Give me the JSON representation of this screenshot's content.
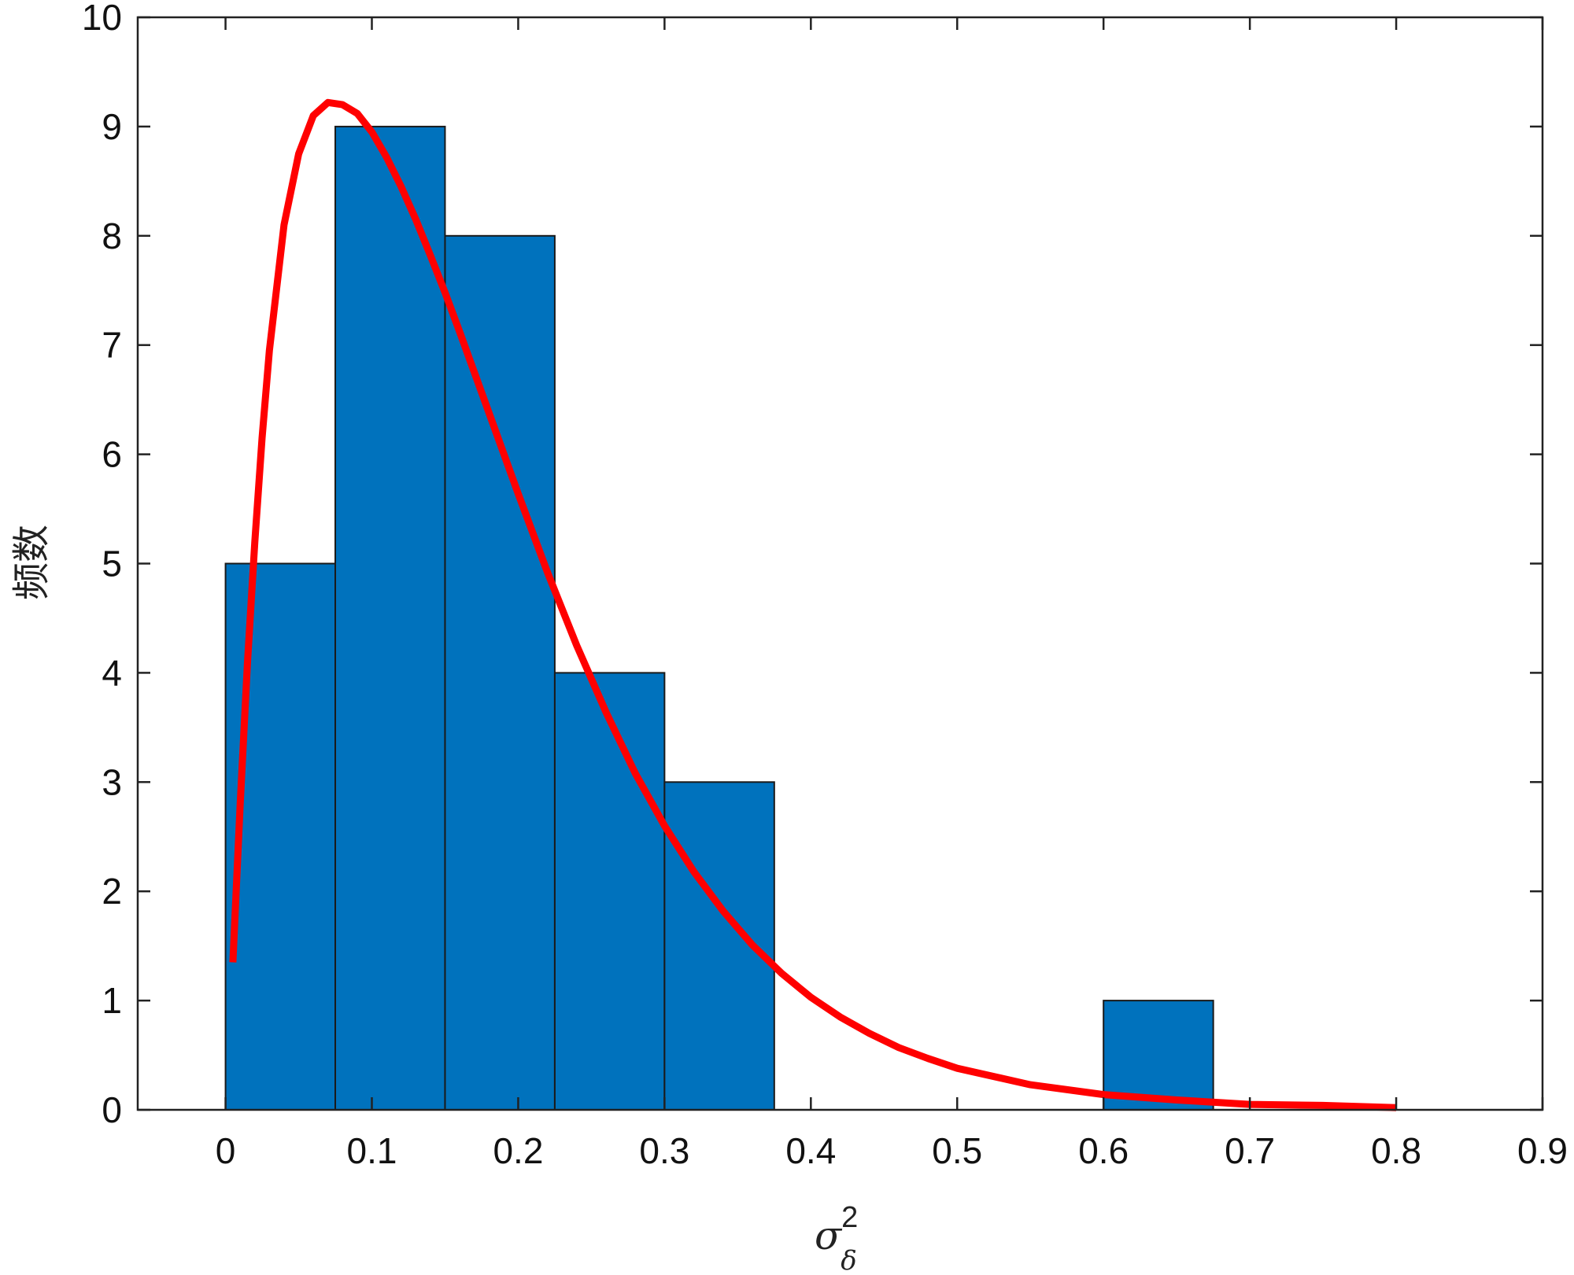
{
  "chart_data": {
    "type": "bar",
    "xlabel": "σ",
    "xlabel_super": "2",
    "xlabel_sub": "δ",
    "ylabel": "频数",
    "xlim": [
      -0.06,
      0.9
    ],
    "ylim": [
      0,
      10
    ],
    "xticks": [
      0,
      0.1,
      0.2,
      0.3,
      0.4,
      0.5,
      0.6,
      0.7,
      0.8,
      0.9
    ],
    "xtick_labels": [
      "0",
      "0.1",
      "0.2",
      "0.3",
      "0.4",
      "0.5",
      "0.6",
      "0.7",
      "0.8",
      "0.9"
    ],
    "yticks": [
      0,
      1,
      2,
      3,
      4,
      5,
      6,
      7,
      8,
      9,
      10
    ],
    "ytick_labels": [
      "0",
      "1",
      "2",
      "3",
      "4",
      "5",
      "6",
      "7",
      "8",
      "9",
      "10"
    ],
    "bin_width": 0.075,
    "bins": [
      {
        "start": 0.0,
        "count": 5
      },
      {
        "start": 0.075,
        "count": 9
      },
      {
        "start": 0.15,
        "count": 8
      },
      {
        "start": 0.225,
        "count": 4
      },
      {
        "start": 0.3,
        "count": 3
      },
      {
        "start": 0.375,
        "count": 0
      },
      {
        "start": 0.45,
        "count": 0
      },
      {
        "start": 0.525,
        "count": 0
      },
      {
        "start": 0.6,
        "count": 1
      }
    ],
    "bar_color": "#0072BD",
    "bar_edge_color": "#1a1a1a",
    "fit_curve": {
      "color": "#FF0000",
      "x": [
        0.005,
        0.01,
        0.015,
        0.02,
        0.025,
        0.03,
        0.04,
        0.05,
        0.06,
        0.07,
        0.08,
        0.09,
        0.1,
        0.11,
        0.12,
        0.13,
        0.14,
        0.15,
        0.16,
        0.18,
        0.2,
        0.22,
        0.24,
        0.26,
        0.28,
        0.3,
        0.32,
        0.34,
        0.36,
        0.38,
        0.4,
        0.42,
        0.44,
        0.46,
        0.48,
        0.5,
        0.55,
        0.6,
        0.65,
        0.7,
        0.75,
        0.8
      ],
      "y": [
        1.35,
        2.8,
        4.1,
        5.2,
        6.15,
        6.95,
        8.1,
        8.75,
        9.1,
        9.22,
        9.2,
        9.12,
        8.95,
        8.72,
        8.45,
        8.15,
        7.82,
        7.48,
        7.12,
        6.38,
        5.64,
        4.92,
        4.25,
        3.64,
        3.08,
        2.6,
        2.18,
        1.82,
        1.51,
        1.25,
        1.03,
        0.85,
        0.7,
        0.57,
        0.47,
        0.38,
        0.23,
        0.14,
        0.09,
        0.05,
        0.04,
        0.02
      ]
    }
  }
}
